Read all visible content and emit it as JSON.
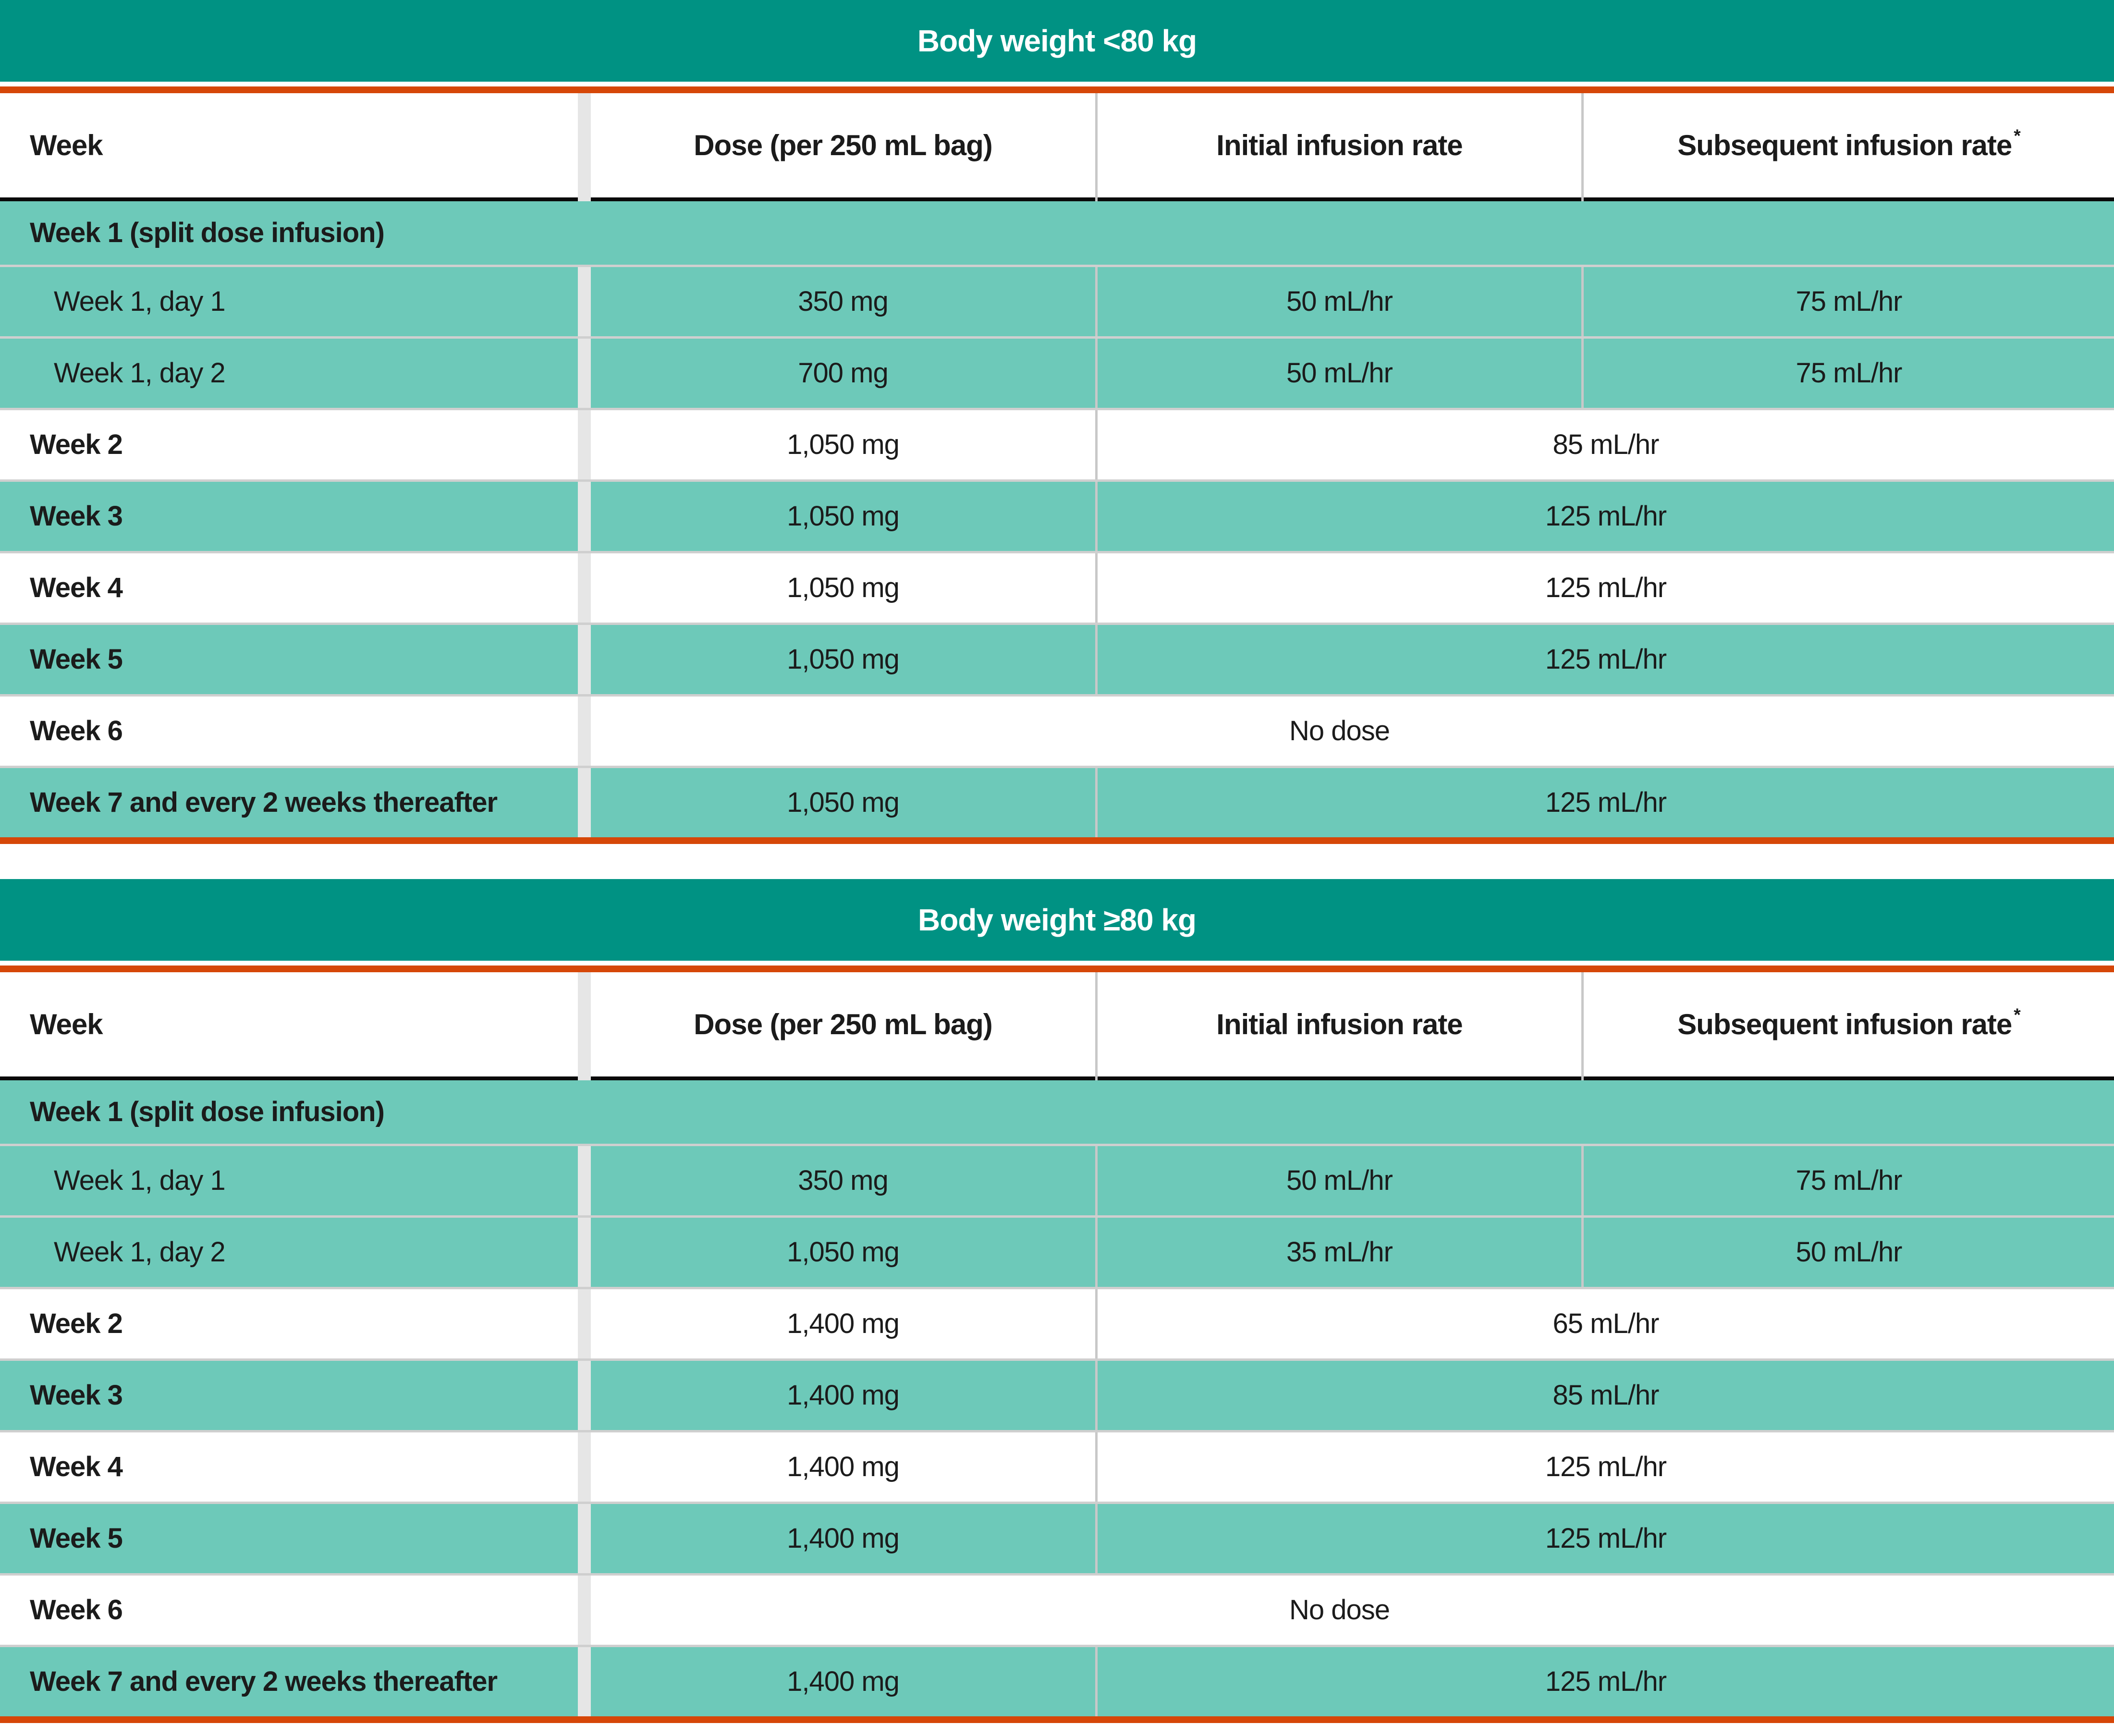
{
  "colors": {
    "header_teal": "#009283",
    "row_teal": "#6DC9B9",
    "rule_orange": "#D64708",
    "rule_black": "#0A0A0A",
    "divider_gray": "#C8C8C8",
    "gutter_gray": "#E6E6E6",
    "separator_gray": "#CFCFCF",
    "text_color": "#1B1B1B",
    "title_text": "#FFFFFF"
  },
  "footnote_marker": "*",
  "tables": [
    {
      "title": "Body weight <80 kg",
      "columns": [
        "Week",
        "Dose (per 250 mL bag)",
        "Initial infusion rate",
        "Subsequent infusion rate"
      ],
      "rows": [
        {
          "type": "section",
          "shade": "teal",
          "label": "Week 1 (split dose infusion)"
        },
        {
          "type": "detail",
          "shade": "teal",
          "label": "Week 1, day 1",
          "dose": "350 mg",
          "initial": "50 mL/hr",
          "subsequent": "75 mL/hr"
        },
        {
          "type": "detail",
          "shade": "teal",
          "label": "Week 1, day 2",
          "dose": "700 mg",
          "initial": "50 mL/hr",
          "subsequent": "75 mL/hr"
        },
        {
          "type": "merged_rate",
          "shade": "white",
          "label": "Week 2",
          "dose": "1,050 mg",
          "rate": "85 mL/hr"
        },
        {
          "type": "merged_rate",
          "shade": "teal",
          "label": "Week 3",
          "dose": "1,050 mg",
          "rate": "125 mL/hr"
        },
        {
          "type": "merged_rate",
          "shade": "white",
          "label": "Week 4",
          "dose": "1,050 mg",
          "rate": "125 mL/hr"
        },
        {
          "type": "merged_rate",
          "shade": "teal",
          "label": "Week 5",
          "dose": "1,050 mg",
          "rate": "125 mL/hr"
        },
        {
          "type": "no_dose",
          "shade": "white",
          "label": "Week 6",
          "rate": "No dose"
        },
        {
          "type": "merged_rate",
          "shade": "teal",
          "label": "Week 7 and every 2 weeks thereafter",
          "dose": "1,050 mg",
          "rate": "125 mL/hr"
        }
      ]
    },
    {
      "title": "Body weight ≥80 kg",
      "columns": [
        "Week",
        "Dose (per 250 mL bag)",
        "Initial infusion rate",
        "Subsequent infusion rate"
      ],
      "rows": [
        {
          "type": "section",
          "shade": "teal",
          "label": "Week 1 (split dose infusion)"
        },
        {
          "type": "detail",
          "shade": "teal",
          "label": "Week 1, day 1",
          "dose": "350 mg",
          "initial": "50 mL/hr",
          "subsequent": "75 mL/hr"
        },
        {
          "type": "detail",
          "shade": "teal",
          "label": "Week 1, day 2",
          "dose": "1,050 mg",
          "initial": "35 mL/hr",
          "subsequent": "50 mL/hr"
        },
        {
          "type": "merged_rate",
          "shade": "white",
          "label": "Week 2",
          "dose": "1,400 mg",
          "rate": "65 mL/hr"
        },
        {
          "type": "merged_rate",
          "shade": "teal",
          "label": "Week 3",
          "dose": "1,400 mg",
          "rate": "85 mL/hr"
        },
        {
          "type": "merged_rate",
          "shade": "white",
          "label": "Week 4",
          "dose": "1,400 mg",
          "rate": "125 mL/hr"
        },
        {
          "type": "merged_rate",
          "shade": "teal",
          "label": "Week 5",
          "dose": "1,400 mg",
          "rate": "125 mL/hr"
        },
        {
          "type": "no_dose",
          "shade": "white",
          "label": "Week 6",
          "rate": "No dose"
        },
        {
          "type": "merged_rate",
          "shade": "teal",
          "label": "Week 7 and every 2 weeks thereafter",
          "dose": "1,400 mg",
          "rate": "125 mL/hr"
        }
      ]
    }
  ]
}
